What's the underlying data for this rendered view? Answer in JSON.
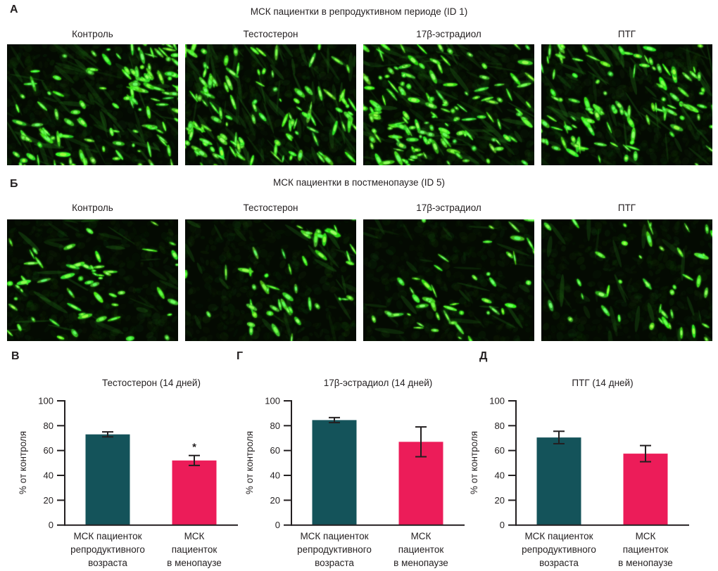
{
  "colors": {
    "bar_teal": "#14535A",
    "bar_pink": "#EC1C59",
    "axis": "#231f20",
    "text": "#231f20",
    "micro_background": "#040a02",
    "micro_green": "#2ed41f"
  },
  "panel_a": {
    "letter": "А",
    "title": "МСК пациентки в репродуктивном периоде (ID 1)",
    "columns": [
      "Контроль",
      "Тестостерон",
      "17β-эстрадиол",
      "ПТГ"
    ],
    "micrographs": [
      {
        "name": "fluorescence-control",
        "seed": 101,
        "cells": 150,
        "streaks": 80,
        "clusters": 4,
        "noise": 550,
        "angle": 0.7
      },
      {
        "name": "fluorescence-testosterone",
        "seed": 202,
        "cells": 145,
        "streaks": 90,
        "clusters": 4,
        "noise": 550,
        "angle": 1.2
      },
      {
        "name": "fluorescence-estradiol",
        "seed": 303,
        "cells": 160,
        "streaks": 85,
        "clusters": 5,
        "noise": 550,
        "angle": 0.5
      },
      {
        "name": "fluorescence-pth",
        "seed": 404,
        "cells": 125,
        "streaks": 75,
        "clusters": 4,
        "noise": 550,
        "angle": 0.9
      }
    ]
  },
  "panel_b": {
    "letter": "Б",
    "title": "МСК пациентки в постменопаузе (ID 5)",
    "columns": [
      "Контроль",
      "Тестостерон",
      "17β-эстрадиол",
      "ПТГ"
    ],
    "micrographs": [
      {
        "name": "fluorescence-control",
        "seed": 505,
        "cells": 62,
        "streaks": 30,
        "clusters": 5,
        "noise": 420,
        "angle": 0.4
      },
      {
        "name": "fluorescence-testosterone",
        "seed": 606,
        "cells": 55,
        "streaks": 28,
        "clusters": 4,
        "noise": 420,
        "angle": 0.9
      },
      {
        "name": "fluorescence-estradiol",
        "seed": 707,
        "cells": 50,
        "streaks": 26,
        "clusters": 4,
        "noise": 420,
        "angle": 0.6
      },
      {
        "name": "fluorescence-pth",
        "seed": 808,
        "cells": 48,
        "streaks": 26,
        "clusters": 4,
        "noise": 420,
        "angle": 1.1
      }
    ]
  },
  "chart_data": [
    {
      "type": "bar",
      "panel_letter": "В",
      "title": "Тестостерон (14 дней)",
      "xlabel": "",
      "ylabel": "% от контроля",
      "ylim": [
        0,
        100
      ],
      "yticks": [
        0,
        20,
        40,
        60,
        80,
        100
      ],
      "grid": false,
      "legend": "none",
      "categories": [
        [
          "МСК пациенток",
          "репродуктивного",
          "возраста"
        ],
        [
          "МСК",
          "пациенток",
          "в менопаузе"
        ]
      ],
      "values": [
        73,
        52
      ],
      "errors": [
        2,
        4
      ],
      "significance": [
        "",
        "*"
      ],
      "bar_colors": [
        "#14535A",
        "#EC1C59"
      ]
    },
    {
      "type": "bar",
      "panel_letter": "Г",
      "title": "17β-эстрадиол (14 дней)",
      "xlabel": "",
      "ylabel": "% от контроля",
      "ylim": [
        0,
        100
      ],
      "yticks": [
        0,
        20,
        40,
        60,
        80,
        100
      ],
      "grid": false,
      "legend": "none",
      "categories": [
        [
          "МСК пациенток",
          "репродуктивного",
          "возраста"
        ],
        [
          "МСК",
          "пациенток",
          "в менопаузе"
        ]
      ],
      "values": [
        84.5,
        67
      ],
      "errors": [
        2,
        12
      ],
      "significance": [
        "",
        ""
      ],
      "bar_colors": [
        "#14535A",
        "#EC1C59"
      ]
    },
    {
      "type": "bar",
      "panel_letter": "Д",
      "title": "ПТГ (14 дней)",
      "xlabel": "",
      "ylabel": "% от контроля",
      "ylim": [
        0,
        100
      ],
      "yticks": [
        0,
        20,
        40,
        60,
        80,
        100
      ],
      "grid": false,
      "legend": "none",
      "categories": [
        [
          "МСК пациенток",
          "репродуктивного",
          "возраста"
        ],
        [
          "МСК",
          "пациенток",
          "в менопаузе"
        ]
      ],
      "values": [
        70.5,
        57.5
      ],
      "errors": [
        5,
        6.5
      ],
      "significance": [
        "",
        ""
      ],
      "bar_colors": [
        "#14535A",
        "#EC1C59"
      ]
    }
  ]
}
